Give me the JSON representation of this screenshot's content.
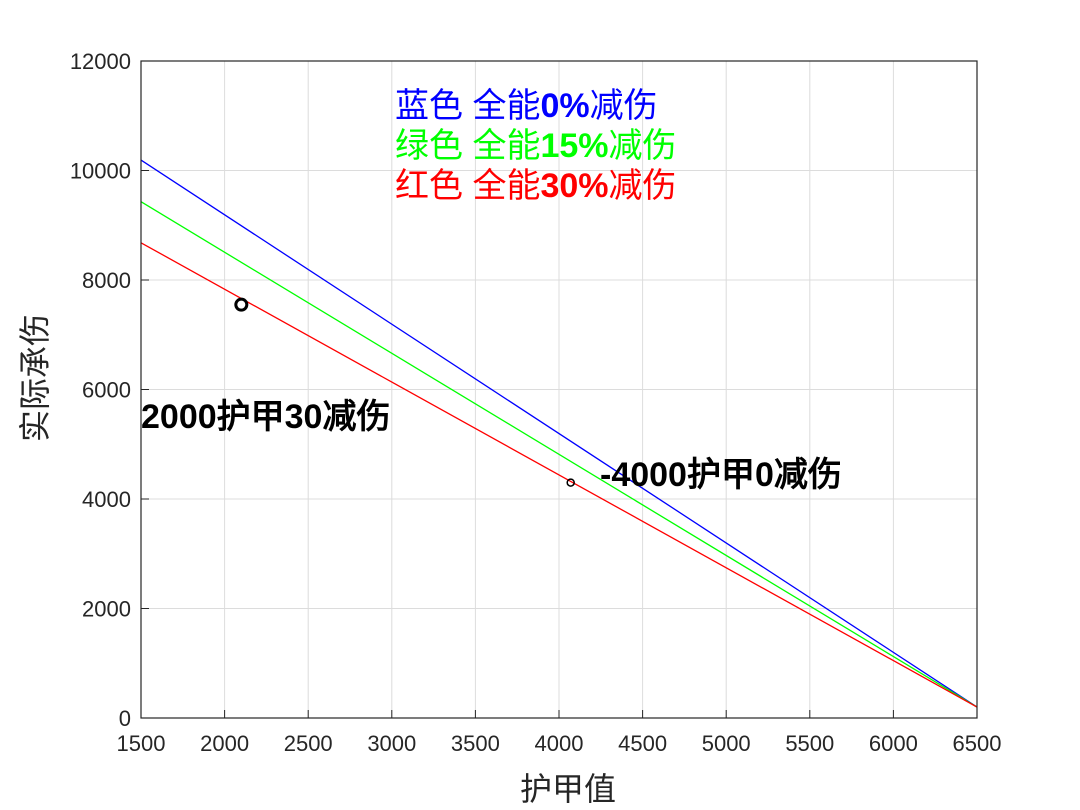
{
  "chart_data": {
    "type": "line",
    "title": "",
    "xlabel": "护甲值",
    "ylabel": "实际承伤",
    "xlim": [
      1500,
      6500
    ],
    "ylim": [
      0,
      12000
    ],
    "xticks": [
      1500,
      2000,
      2500,
      3000,
      3500,
      4000,
      4500,
      5000,
      5500,
      6000,
      6500
    ],
    "yticks": [
      0,
      2000,
      4000,
      6000,
      8000,
      10000,
      12000
    ],
    "grid": true,
    "series": [
      {
        "name": "蓝色 全能0%减伤",
        "color": "#0000ff",
        "x": [
          1500,
          6500
        ],
        "y": [
          10190,
          200
        ]
      },
      {
        "name": "绿色 全能15%减伤",
        "color": "#00ff00",
        "x": [
          1500,
          6500
        ],
        "y": [
          9430,
          200
        ]
      },
      {
        "name": "红色 全能30%减伤",
        "color": "#ff0000",
        "x": [
          1500,
          6500
        ],
        "y": [
          8680,
          200
        ]
      }
    ],
    "markers": [
      {
        "x": 2100,
        "y": 7550,
        "style": "bold-circle"
      },
      {
        "x": 4070,
        "y": 4300,
        "style": "small-circle"
      }
    ],
    "legend": [
      {
        "pre": "蓝色 全能",
        "bold": "0%",
        "post": "减伤",
        "color": "#0000ff"
      },
      {
        "pre": "绿色 全能",
        "bold": "15%",
        "post": "减伤",
        "color": "#00ff00"
      },
      {
        "pre": "红色 全能",
        "bold": "30%",
        "post": "减伤",
        "color": "#ff0000"
      }
    ],
    "legend_position": "top-center",
    "annotations": [
      "2000护甲30减伤",
      "-4000护甲0减伤"
    ]
  }
}
